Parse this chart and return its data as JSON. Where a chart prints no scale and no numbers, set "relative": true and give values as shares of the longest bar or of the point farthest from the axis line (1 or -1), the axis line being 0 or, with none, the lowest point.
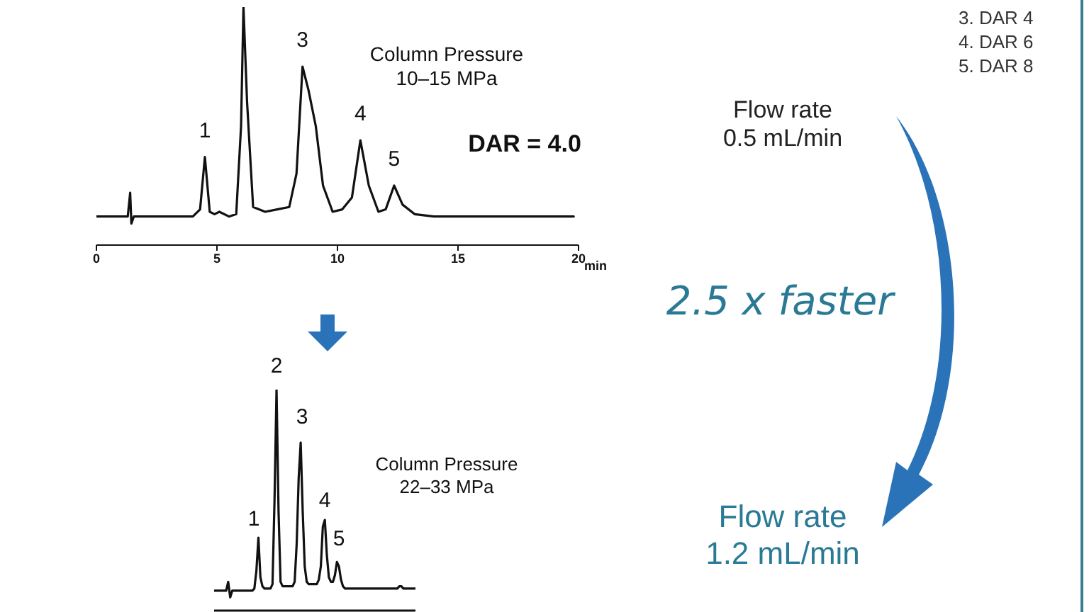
{
  "chart_data": [
    {
      "type": "line",
      "relative": true,
      "xlabel": "min",
      "xlim": [
        0,
        20
      ],
      "xticks": [
        0,
        5,
        10,
        15,
        20
      ],
      "tick_labels": "x",
      "series": [
        {
          "color": "#111111",
          "x": [
            0,
            1.0,
            1.3,
            1.4,
            1.45,
            1.55,
            1.8,
            3,
            4.0,
            4.3,
            4.5,
            4.7,
            4.9,
            5.1,
            5.5,
            5.8,
            6.0,
            6.1,
            6.25,
            6.5,
            7,
            7.5,
            8,
            8.3,
            8.55,
            8.8,
            9.1,
            9.4,
            9.8,
            10.2,
            10.6,
            10.95,
            11.3,
            11.7,
            12.0,
            12.35,
            12.7,
            13.2,
            14,
            16,
            18,
            19.8
          ],
          "values": [
            0.12,
            0.12,
            0.12,
            0.22,
            0.09,
            0.12,
            0.12,
            0.12,
            0.12,
            0.15,
            0.37,
            0.14,
            0.13,
            0.14,
            0.12,
            0.13,
            0.5,
            1,
            0.6,
            0.16,
            0.14,
            0.15,
            0.16,
            0.3,
            0.75,
            0.65,
            0.5,
            0.25,
            0.14,
            0.15,
            0.2,
            0.44,
            0.25,
            0.14,
            0.15,
            0.25,
            0.17,
            0.13,
            0.12,
            0.12,
            0.12,
            0.12
          ]
        }
      ],
      "annotations": [
        {
          "text": "1",
          "x": 4.5,
          "y": 0.37
        },
        {
          "text": "3",
          "x": 8.55,
          "y": 0.75
        },
        {
          "text": "4",
          "x": 10.95,
          "y": 0.44
        },
        {
          "text": "5",
          "x": 12.35,
          "y": 0.25
        },
        "Column Pressure\n10–15 MPa",
        "DAR = 4.0",
        "Flow rate\n0.5 mL/min",
        "2.5 x faster",
        "3. DAR 4\n4. DAR 6\n5. DAR 8"
      ]
    },
    {
      "type": "line",
      "relative": true,
      "tick_labels": false,
      "categories": [
        null,
        null,
        null,
        null,
        null,
        null,
        null,
        null,
        null,
        null,
        null,
        null,
        null,
        null,
        null,
        null,
        null,
        null,
        null,
        null,
        null,
        null,
        null,
        null,
        null,
        null,
        null,
        null,
        null,
        null,
        null,
        null,
        null,
        null,
        null,
        null,
        null,
        null,
        null,
        null,
        null,
        null,
        null,
        null,
        null,
        null,
        null,
        null,
        null,
        null,
        null,
        null,
        null,
        null,
        null,
        null,
        null,
        null,
        null,
        null,
        null,
        null,
        null,
        null,
        null,
        null,
        null,
        null,
        null,
        null,
        null,
        null,
        null,
        null,
        null,
        null,
        null,
        null,
        null,
        null,
        null,
        null,
        null,
        null,
        null,
        null,
        null,
        null,
        null,
        null,
        null,
        null,
        null,
        null,
        null,
        null,
        null,
        null,
        null,
        null,
        null
      ],
      "series": [
        {
          "color": "#111111",
          "values": [
            0.09,
            0.09,
            0.09,
            0.09,
            0.09,
            0.09,
            0.09,
            0.13,
            0.06,
            0.09,
            0.09,
            0.09,
            0.09,
            0.09,
            0.09,
            0.09,
            0.09,
            0.09,
            0.09,
            0.09,
            0.1,
            0.18,
            0.33,
            0.15,
            0.11,
            0.1,
            0.1,
            0.1,
            0.1,
            0.12,
            0.5,
            1,
            0.45,
            0.13,
            0.11,
            0.11,
            0.11,
            0.11,
            0.11,
            0.11,
            0.13,
            0.3,
            0.6,
            0.76,
            0.45,
            0.2,
            0.13,
            0.12,
            0.12,
            0.12,
            0.12,
            0.12,
            0.14,
            0.2,
            0.38,
            0.41,
            0.25,
            0.15,
            0.13,
            0.13,
            0.16,
            0.22,
            0.2,
            0.14,
            0.11,
            0.1,
            0.1,
            0.1,
            0.1,
            0.1,
            0.1,
            0.1,
            0.1,
            0.1,
            0.1,
            0.1,
            0.1,
            0.1,
            0.1,
            0.1,
            0.1,
            0.1,
            0.1,
            0.1,
            0.1,
            0.1,
            0.1,
            0.1,
            0.1,
            0.1,
            0.1,
            0.1,
            0.11,
            0.11,
            0.1,
            0.1,
            0.1,
            0.1,
            0.1,
            0.1,
            0.1
          ]
        }
      ],
      "annotations": [
        "1",
        "2",
        "3",
        "4",
        "5",
        "Column Pressure\n22–33 MPa",
        "Flow rate\n1.2 mL/min"
      ]
    }
  ]
}
